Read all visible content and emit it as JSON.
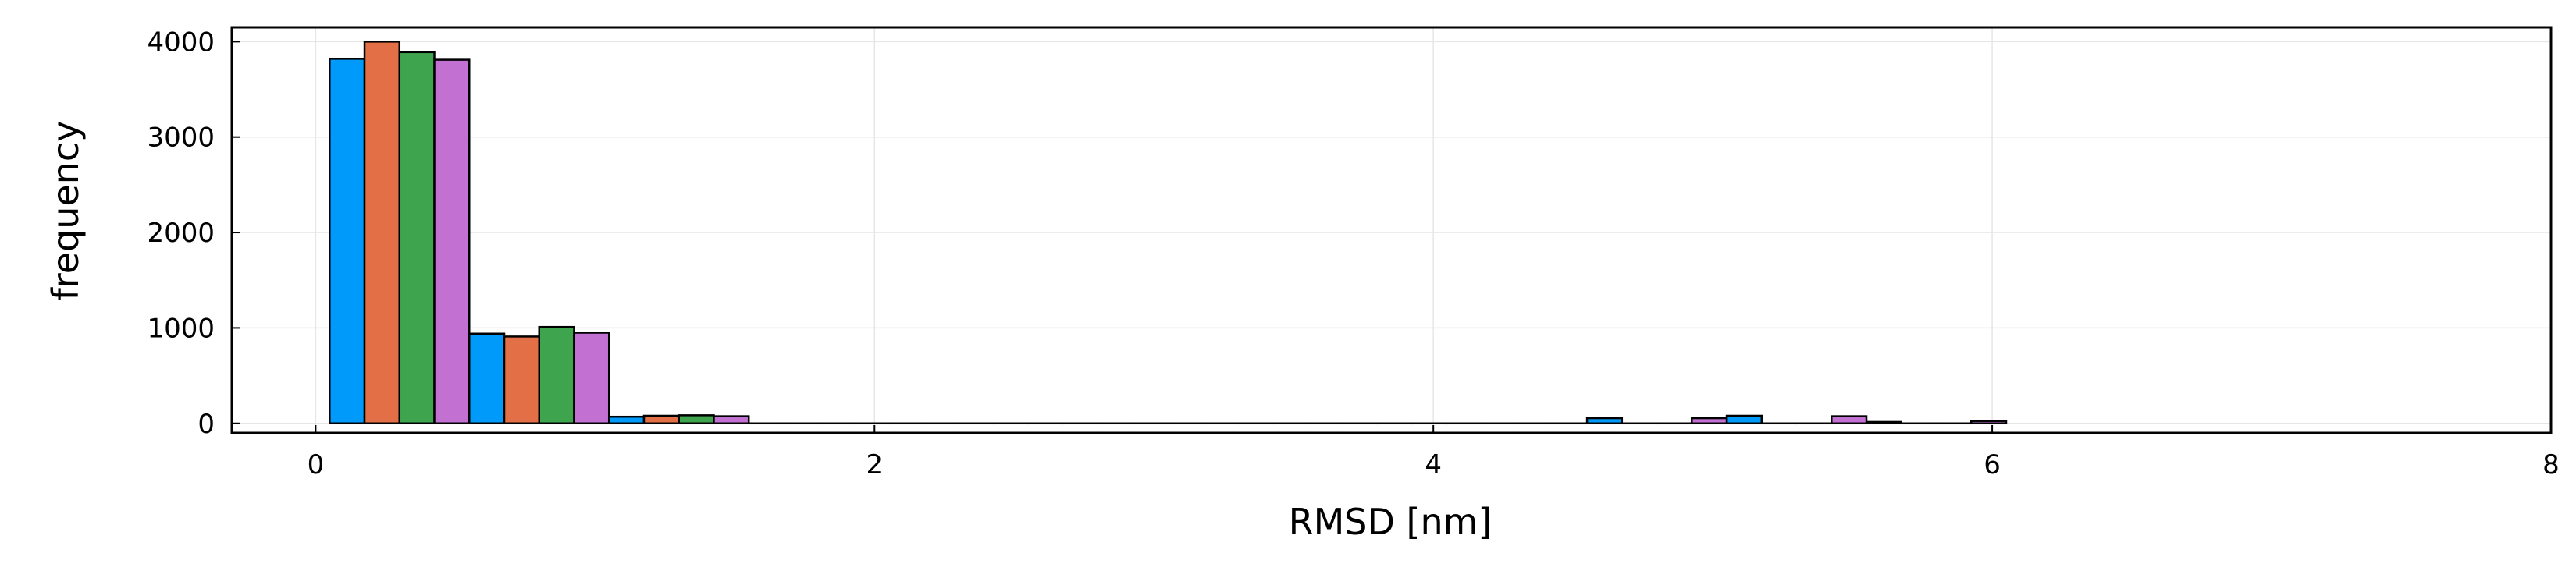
{
  "chart_data": {
    "type": "bar",
    "xlabel": "RMSD [nm]",
    "ylabel": "frequency",
    "xlim": [
      -0.3,
      8.0
    ],
    "ylim": [
      -100,
      4150
    ],
    "x_ticks": [
      0,
      2,
      4,
      6,
      8
    ],
    "y_ticks": [
      0,
      1000,
      2000,
      3000,
      4000
    ],
    "grid": true,
    "legend": "none",
    "bin_width": 0.5,
    "bin_starts": [
      0.05,
      0.55,
      1.05,
      1.55,
      2.05,
      2.55,
      3.05,
      3.55,
      4.05,
      4.55,
      5.05,
      5.55
    ],
    "series": [
      {
        "color": "#009AFA",
        "values": [
          3820,
          940,
          70,
          0,
          0,
          0,
          0,
          0,
          0,
          55,
          80,
          15
        ]
      },
      {
        "color": "#E26F46",
        "values": [
          4000,
          910,
          80,
          0,
          0,
          0,
          0,
          0,
          0,
          0,
          0,
          0
        ]
      },
      {
        "color": "#3EA44E",
        "values": [
          3890,
          1010,
          85,
          0,
          0,
          0,
          0,
          0,
          0,
          0,
          0,
          0
        ]
      },
      {
        "color": "#C271D2",
        "values": [
          3810,
          950,
          75,
          0,
          0,
          0,
          0,
          0,
          0,
          55,
          75,
          25
        ]
      }
    ]
  }
}
